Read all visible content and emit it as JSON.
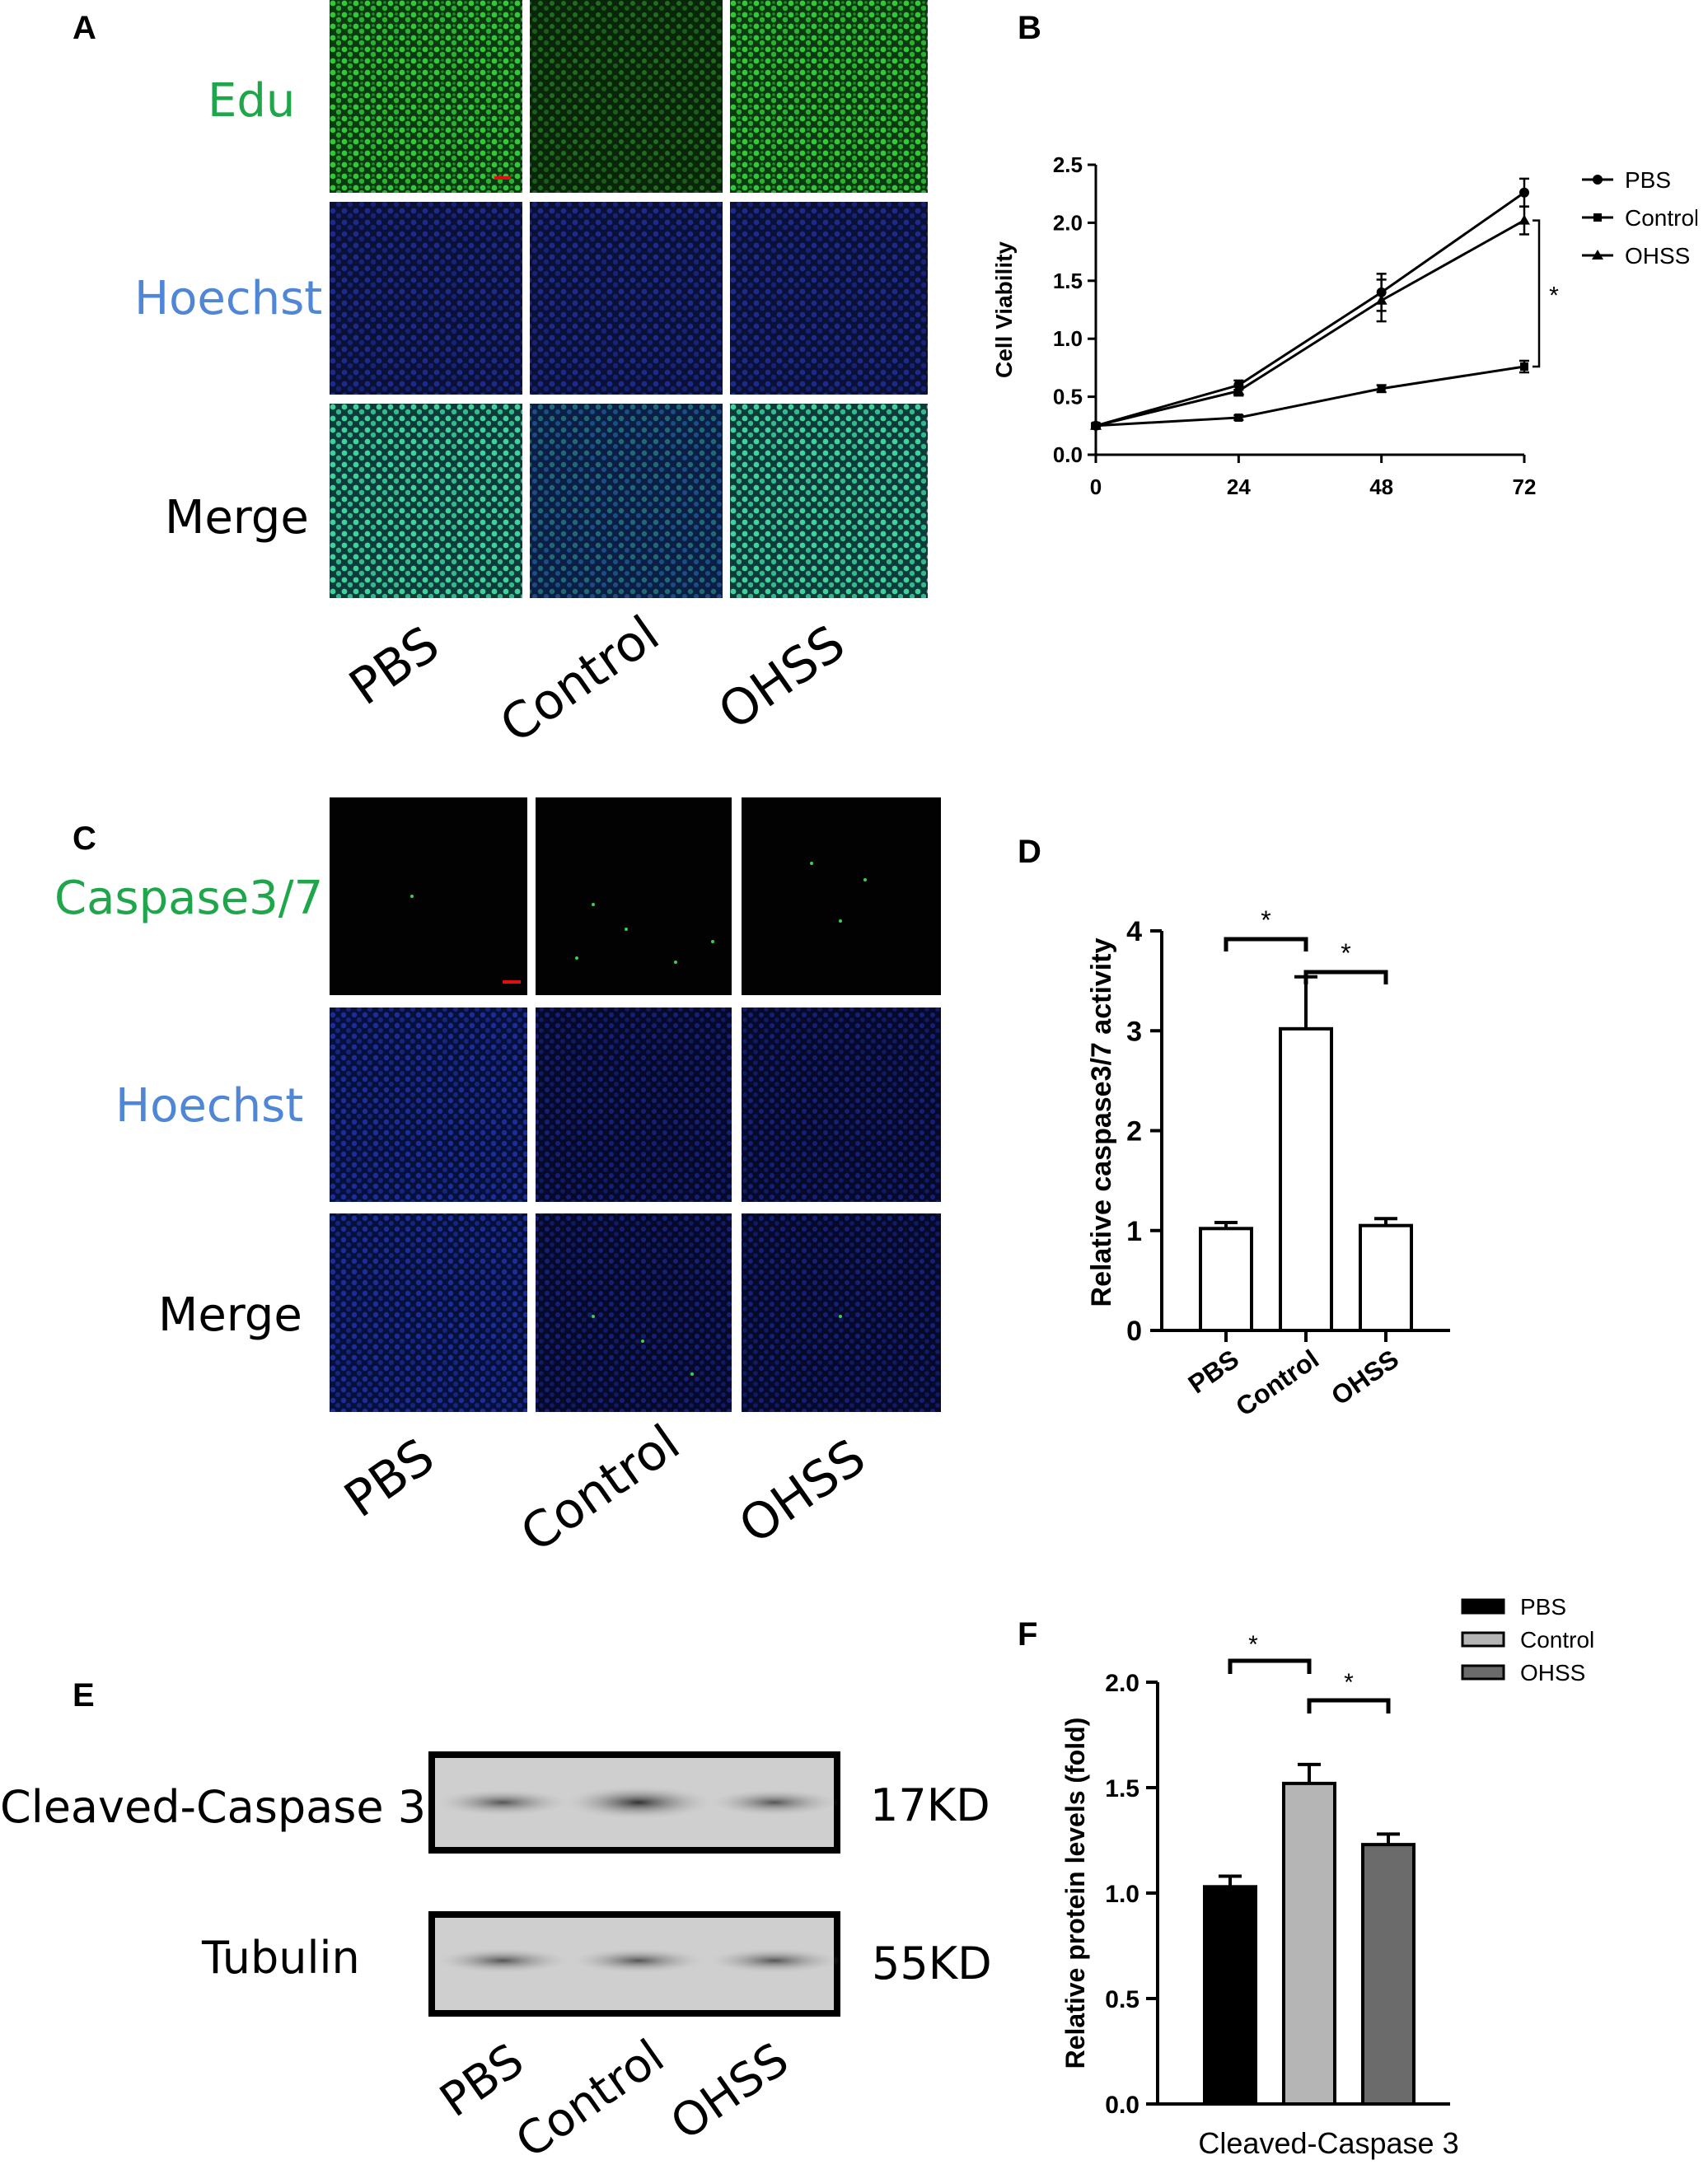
{
  "panels": {
    "A": {
      "letter": "A",
      "rows": [
        "Edu",
        "Hoechst",
        "Merge"
      ],
      "row_colors": [
        "#1fa64a",
        "#4f86d6",
        "#000000"
      ],
      "conditions": [
        "PBS",
        "Control",
        "OHSS"
      ]
    },
    "B": {
      "letter": "B"
    },
    "C": {
      "letter": "C",
      "rows": [
        "Caspase3/7",
        "Hoechst",
        "Merge"
      ],
      "row_colors": [
        "#1fa64a",
        "#4f86d6",
        "#000000"
      ],
      "conditions": [
        "PBS",
        "Control",
        "OHSS"
      ]
    },
    "D": {
      "letter": "D"
    },
    "E": {
      "letter": "E",
      "bands": [
        "Cleaved-Caspase 3",
        "Tubulin"
      ],
      "sizes": [
        "17KD",
        "55KD"
      ],
      "lanes": [
        "PBS",
        "Control",
        "OHSS"
      ]
    },
    "F": {
      "letter": "F"
    }
  },
  "chart_data": [
    {
      "panel": "B",
      "type": "line",
      "title": "",
      "xlabel": "",
      "ylabel": "Cell Viability",
      "x": [
        0,
        24,
        48,
        72
      ],
      "xlim": [
        0,
        72
      ],
      "ylim": [
        0,
        2.5
      ],
      "yticks": [
        "0.0",
        "0.5",
        "1.0",
        "1.5",
        "2.0",
        "2.5"
      ],
      "series": [
        {
          "name": "PBS",
          "values": [
            0.25,
            0.6,
            1.4,
            2.26
          ],
          "errors": [
            0.02,
            0.04,
            0.16,
            0.12
          ],
          "marker": "circle"
        },
        {
          "name": "Control",
          "values": [
            0.25,
            0.32,
            0.57,
            0.76
          ],
          "errors": [
            0.02,
            0.02,
            0.03,
            0.05
          ],
          "marker": "square"
        },
        {
          "name": "OHSS",
          "values": [
            0.25,
            0.55,
            1.33,
            2.02
          ],
          "errors": [
            0.02,
            0.04,
            0.18,
            0.12
          ],
          "marker": "triangle"
        }
      ],
      "significance": "*",
      "legend": "right"
    },
    {
      "panel": "D",
      "type": "bar",
      "title": "",
      "xlabel": "",
      "ylabel": "Relative caspase3/7 activity",
      "categories": [
        "PBS",
        "Control",
        "OHSS"
      ],
      "values": [
        1.02,
        3.02,
        1.05
      ],
      "errors": [
        0.06,
        0.52,
        0.07
      ],
      "ylim": [
        0,
        4
      ],
      "yticks": [
        "0",
        "1",
        "2",
        "3",
        "4"
      ],
      "significance": [
        "*",
        "*"
      ]
    },
    {
      "panel": "F",
      "type": "bar",
      "title": "",
      "xlabel": "Cleaved-Caspase 3",
      "ylabel": "Relative protein levels  (fold)",
      "categories": [
        "PBS",
        "Control",
        "OHSS"
      ],
      "values": [
        1.03,
        1.52,
        1.23
      ],
      "errors": [
        0.05,
        0.09,
        0.05
      ],
      "colors": [
        "#000000",
        "#b5b5b5",
        "#6b6b6b"
      ],
      "ylim": [
        0,
        2.0
      ],
      "yticks": [
        "0.0",
        "0.5",
        "1.0",
        "1.5",
        "2.0"
      ],
      "significance": [
        "*",
        "*"
      ],
      "legend": "top-right"
    }
  ]
}
